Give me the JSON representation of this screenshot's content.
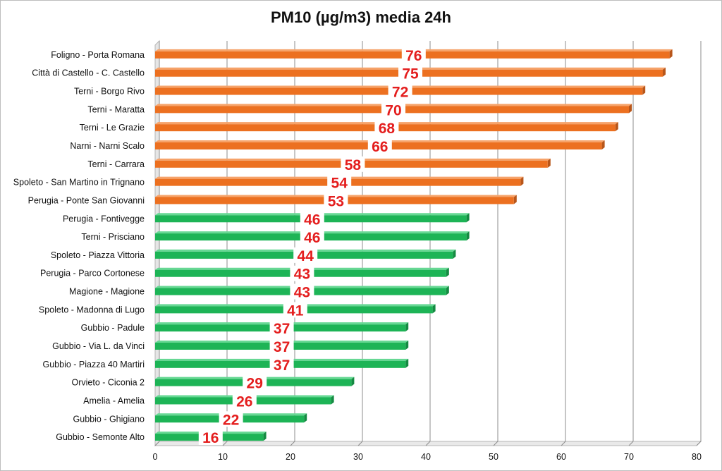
{
  "chart_data": {
    "type": "bar",
    "orientation": "horizontal",
    "title": "PM10 (µg/m3) media 24h",
    "xlabel": "",
    "ylabel": "",
    "xlim": [
      0,
      80
    ],
    "xticks": [
      0,
      10,
      20,
      30,
      40,
      50,
      60,
      70,
      80
    ],
    "grid": true,
    "legend": "none",
    "categories": [
      "Foligno - Porta Romana",
      "Città di Castello - C. Castello",
      "Terni - Borgo Rivo",
      "Terni - Maratta",
      "Terni - Le Grazie",
      "Narni - Narni Scalo",
      "Terni - Carrara",
      "Spoleto - San Martino in Trignano",
      "Perugia - Ponte San Giovanni",
      "Perugia - Fontivegge",
      "Terni - Prisciano",
      "Spoleto - Piazza Vittoria",
      "Perugia - Parco Cortonese",
      "Magione - Magione",
      "Spoleto - Madonna di Lugo",
      "Gubbio - Padule",
      "Gubbio - Via L. da Vinci",
      "Gubbio - Piazza 40 Martiri",
      "Orvieto - Ciconia 2",
      "Amelia - Amelia",
      "Gubbio - Ghigiano",
      "Gubbio - Semonte Alto"
    ],
    "values": [
      76,
      75,
      72,
      70,
      68,
      66,
      58,
      54,
      53,
      46,
      46,
      44,
      43,
      43,
      41,
      37,
      37,
      37,
      29,
      26,
      22,
      16
    ],
    "colors": {
      "above_threshold": "#ec7020",
      "below_threshold": "#1db456",
      "data_label": "#e41e1e",
      "grid": "#8c8c8c"
    }
  }
}
